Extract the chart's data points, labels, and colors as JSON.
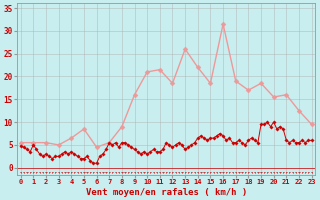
{
  "xlabel": "Vent moyen/en rafales ( km/h )",
  "bg_color": "#c8eef0",
  "grid_color": "#b0b0b0",
  "ylim": [
    -1.5,
    36
  ],
  "xlim": [
    0,
    23
  ],
  "wind_gust_x": [
    0,
    1,
    2,
    3,
    4,
    5,
    6,
    7,
    8,
    9,
    10,
    11,
    12,
    13,
    14,
    15,
    16,
    17,
    18,
    19,
    20,
    21,
    22,
    23
  ],
  "wind_gust_y": [
    5.5,
    5.5,
    5.5,
    5.0,
    6.5,
    8.5,
    4.5,
    5.5,
    9.0,
    16.0,
    21.0,
    21.5,
    18.5,
    26.0,
    22.0,
    18.5,
    31.5,
    19.0,
    17.0,
    18.5,
    15.5,
    16.0,
    12.5,
    9.5
  ],
  "wind_avg_x": [
    0.0,
    0.25,
    0.5,
    0.75,
    1.0,
    1.25,
    1.5,
    1.75,
    2.0,
    2.25,
    2.5,
    2.75,
    3.0,
    3.25,
    3.5,
    3.75,
    4.0,
    4.25,
    4.5,
    4.75,
    5.0,
    5.25,
    5.5,
    5.75,
    6.0,
    6.25,
    6.5,
    6.75,
    7.0,
    7.25,
    7.5,
    7.75,
    8.0,
    8.25,
    8.5,
    8.75,
    9.0,
    9.25,
    9.5,
    9.75,
    10.0,
    10.25,
    10.5,
    10.75,
    11.0,
    11.25,
    11.5,
    11.75,
    12.0,
    12.25,
    12.5,
    12.75,
    13.0,
    13.25,
    13.5,
    13.75,
    14.0,
    14.25,
    14.5,
    14.75,
    15.0,
    15.25,
    15.5,
    15.75,
    16.0,
    16.25,
    16.5,
    16.75,
    17.0,
    17.25,
    17.5,
    17.75,
    18.0,
    18.25,
    18.5,
    18.75,
    19.0,
    19.25,
    19.5,
    19.75,
    20.0,
    20.25,
    20.5,
    20.75,
    21.0,
    21.25,
    21.5,
    21.75,
    22.0,
    22.25,
    22.5,
    22.75,
    23.0
  ],
  "wind_avg_y": [
    4.8,
    4.5,
    4.0,
    3.5,
    5.0,
    4.0,
    3.0,
    2.5,
    3.0,
    2.5,
    2.0,
    2.5,
    2.5,
    3.0,
    3.5,
    3.0,
    3.5,
    3.0,
    2.5,
    2.0,
    2.0,
    2.5,
    1.5,
    1.0,
    1.0,
    2.5,
    3.0,
    4.0,
    5.5,
    5.0,
    5.5,
    4.5,
    5.5,
    5.5,
    5.0,
    4.5,
    4.0,
    3.5,
    3.0,
    3.5,
    3.0,
    3.5,
    4.0,
    3.5,
    3.5,
    4.0,
    5.5,
    5.0,
    4.5,
    5.0,
    5.5,
    5.0,
    4.0,
    4.5,
    5.0,
    5.5,
    6.5,
    7.0,
    6.5,
    6.0,
    6.5,
    6.5,
    7.0,
    7.5,
    7.0,
    6.0,
    6.5,
    5.5,
    5.5,
    6.0,
    5.5,
    5.0,
    6.0,
    6.5,
    6.0,
    5.5,
    9.5,
    9.5,
    10.0,
    9.0,
    10.0,
    8.5,
    9.0,
    8.5,
    6.0,
    5.5,
    6.0,
    5.5,
    5.5,
    6.0,
    5.5,
    6.0,
    6.0
  ],
  "wind_gust_color": "#ee9999",
  "wind_avg_color": "#cc0000",
  "wind_gust_lw": 1.0,
  "wind_avg_lw": 0.7,
  "marker_size_gust": 2.5,
  "marker_size_avg": 1.8,
  "x_ticks": [
    0,
    1,
    2,
    3,
    4,
    5,
    6,
    7,
    8,
    9,
    10,
    11,
    12,
    13,
    14,
    15,
    16,
    17,
    18,
    19,
    20,
    21,
    22,
    23
  ],
  "y_ticks": [
    0,
    5,
    10,
    15,
    20,
    25,
    30,
    35
  ]
}
